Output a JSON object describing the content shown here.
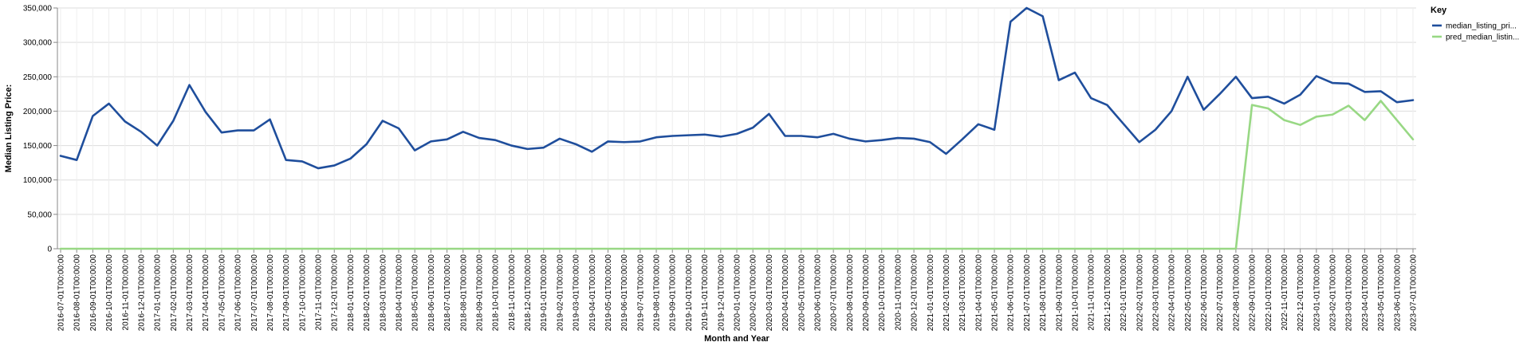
{
  "chart_data": {
    "type": "line",
    "xlabel": "Month and Year",
    "ylabel": "Median Listing Price:",
    "ylim": [
      0,
      350000
    ],
    "yticks": [
      "0",
      "50,000",
      "100,000",
      "150,000",
      "200,000",
      "250,000",
      "300,000",
      "350,000"
    ],
    "ytick_values": [
      0,
      50000,
      100000,
      150000,
      200000,
      250000,
      300000,
      350000
    ],
    "grid": true,
    "legend_position": "right",
    "legend_title": "Key",
    "x": [
      "2016-07-01T00:00:00",
      "2016-08-01T00:00:00",
      "2016-09-01T00:00:00",
      "2016-10-01T00:00:00",
      "2016-11-01T00:00:00",
      "2016-12-01T00:00:00",
      "2017-01-01T00:00:00",
      "2017-02-01T00:00:00",
      "2017-03-01T00:00:00",
      "2017-04-01T00:00:00",
      "2017-05-01T00:00:00",
      "2017-06-01T00:00:00",
      "2017-07-01T00:00:00",
      "2017-08-01T00:00:00",
      "2017-09-01T00:00:00",
      "2017-10-01T00:00:00",
      "2017-11-01T00:00:00",
      "2017-12-01T00:00:00",
      "2018-01-01T00:00:00",
      "2018-02-01T00:00:00",
      "2018-03-01T00:00:00",
      "2018-04-01T00:00:00",
      "2018-05-01T00:00:00",
      "2018-06-01T00:00:00",
      "2018-07-01T00:00:00",
      "2018-08-01T00:00:00",
      "2018-09-01T00:00:00",
      "2018-10-01T00:00:00",
      "2018-11-01T00:00:00",
      "2018-12-01T00:00:00",
      "2019-01-01T00:00:00",
      "2019-02-01T00:00:00",
      "2019-03-01T00:00:00",
      "2019-04-01T00:00:00",
      "2019-05-01T00:00:00",
      "2019-06-01T00:00:00",
      "2019-07-01T00:00:00",
      "2019-08-01T00:00:00",
      "2019-09-01T00:00:00",
      "2019-10-01T00:00:00",
      "2019-11-01T00:00:00",
      "2019-12-01T00:00:00",
      "2020-01-01T00:00:00",
      "2020-02-01T00:00:00",
      "2020-03-01T00:00:00",
      "2020-04-01T00:00:00",
      "2020-05-01T00:00:00",
      "2020-06-01T00:00:00",
      "2020-07-01T00:00:00",
      "2020-08-01T00:00:00",
      "2020-09-01T00:00:00",
      "2020-10-01T00:00:00",
      "2020-11-01T00:00:00",
      "2020-12-01T00:00:00",
      "2021-01-01T00:00:00",
      "2021-02-01T00:00:00",
      "2021-03-01T00:00:00",
      "2021-04-01T00:00:00",
      "2021-05-01T00:00:00",
      "2021-06-01T00:00:00",
      "2021-07-01T00:00:00",
      "2021-08-01T00:00:00",
      "2021-09-01T00:00:00",
      "2021-10-01T00:00:00",
      "2021-11-01T00:00:00",
      "2021-12-01T00:00:00",
      "2022-01-01T00:00:00",
      "2022-02-01T00:00:00",
      "2022-03-01T00:00:00",
      "2022-04-01T00:00:00",
      "2022-05-01T00:00:00",
      "2022-06-01T00:00:00",
      "2022-07-01T00:00:00",
      "2022-08-01T00:00:00",
      "2022-09-01T00:00:00",
      "2022-10-01T00:00:00",
      "2022-11-01T00:00:00",
      "2022-12-01T00:00:00",
      "2023-01-01T00:00:00",
      "2023-02-01T00:00:00",
      "2023-03-01T00:00:00",
      "2023-04-01T00:00:00",
      "2023-05-01T00:00:00",
      "2023-06-01T00:00:00",
      "2023-07-01T00:00:00"
    ],
    "series": [
      {
        "name": "median_listing_pri...",
        "color": "#1f4e9c",
        "values": [
          135000,
          129000,
          193000,
          211000,
          185000,
          170000,
          150000,
          186000,
          238000,
          199000,
          169000,
          172000,
          172000,
          188000,
          129000,
          127000,
          117000,
          121000,
          131000,
          152000,
          186000,
          175000,
          143000,
          156000,
          159000,
          170000,
          161000,
          158000,
          150000,
          145000,
          147000,
          160000,
          152000,
          141000,
          156000,
          155000,
          156000,
          162000,
          164000,
          165000,
          166000,
          163000,
          167000,
          176000,
          196000,
          164000,
          164000,
          162000,
          167000,
          160000,
          156000,
          158000,
          161000,
          160000,
          155000,
          138000,
          159000,
          181000,
          173000,
          330000,
          350000,
          338000,
          245000,
          256000,
          219000,
          209000,
          182000,
          155000,
          173000,
          200000,
          250000,
          202000,
          225000,
          250000,
          219000,
          221000,
          211000,
          224000,
          251000,
          241000,
          240000,
          228000,
          229000,
          213000,
          216000
        ]
      },
      {
        "name": "pred_median_listin...",
        "color": "#98d884",
        "values": [
          0,
          0,
          0,
          0,
          0,
          0,
          0,
          0,
          0,
          0,
          0,
          0,
          0,
          0,
          0,
          0,
          0,
          0,
          0,
          0,
          0,
          0,
          0,
          0,
          0,
          0,
          0,
          0,
          0,
          0,
          0,
          0,
          0,
          0,
          0,
          0,
          0,
          0,
          0,
          0,
          0,
          0,
          0,
          0,
          0,
          0,
          0,
          0,
          0,
          0,
          0,
          0,
          0,
          0,
          0,
          0,
          0,
          0,
          0,
          0,
          0,
          0,
          0,
          0,
          0,
          0,
          0,
          0,
          0,
          0,
          0,
          0,
          0,
          0,
          209000,
          204000,
          187000,
          180000,
          192000,
          195000,
          208000,
          187000,
          215000,
          187000,
          159000
        ]
      }
    ]
  }
}
